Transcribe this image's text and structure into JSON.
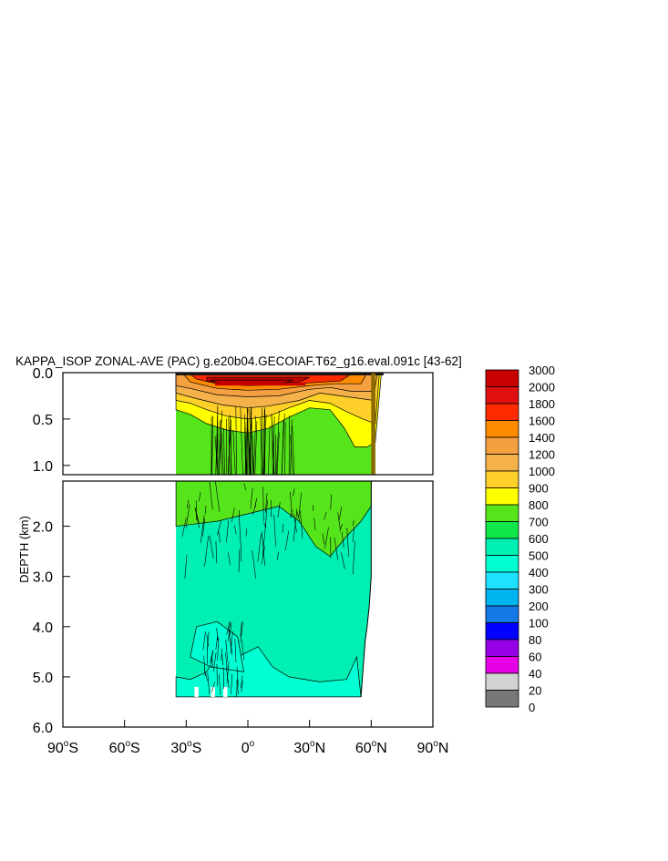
{
  "chart_data": {
    "type": "heatmap",
    "title": "KAPPA_ISOP ZONAL-AVE (PAC) g.e20b04.GECOIAF.T62_g16.eval.091c [43-62]",
    "ylabel": "DEPTH (km)",
    "xlabel": "",
    "x_ticks": [
      {
        "value": -90,
        "label": "90°S",
        "num": "90",
        "deg": "o",
        "hemi": "S"
      },
      {
        "value": -60,
        "label": "60°S",
        "num": "60",
        "deg": "o",
        "hemi": "S"
      },
      {
        "value": -30,
        "label": "30°S",
        "num": "30",
        "deg": "o",
        "hemi": "S"
      },
      {
        "value": 0,
        "label": "0°",
        "num": "0",
        "deg": "o",
        "hemi": ""
      },
      {
        "value": 30,
        "label": "30°N",
        "num": "30",
        "deg": "o",
        "hemi": "N"
      },
      {
        "value": 60,
        "label": "60°N",
        "num": "60",
        "deg": "o",
        "hemi": "N"
      },
      {
        "value": 90,
        "label": "90°N",
        "num": "90",
        "deg": "o",
        "hemi": "N"
      }
    ],
    "xlim": [
      -90,
      90
    ],
    "upper_panel": {
      "ylim": [
        0.0,
        1.1
      ],
      "y_ticks": [
        {
          "value": 0.0,
          "label": "0.0"
        },
        {
          "value": 0.5,
          "label": "0.5"
        },
        {
          "value": 1.0,
          "label": "1.0"
        }
      ]
    },
    "lower_panel": {
      "ylim": [
        1.1,
        6.0
      ],
      "y_ticks": [
        {
          "value": 2.0,
          "label": "2.0"
        },
        {
          "value": 3.0,
          "label": "3.0"
        },
        {
          "value": 4.0,
          "label": "4.0"
        },
        {
          "value": 5.0,
          "label": "5.0"
        },
        {
          "value": 6.0,
          "label": "6.0"
        }
      ]
    },
    "colorbar": {
      "labels": [
        "3000",
        "2000",
        "1800",
        "1600",
        "1400",
        "1200",
        "1000",
        "900",
        "800",
        "700",
        "600",
        "500",
        "400",
        "300",
        "200",
        "100",
        "80",
        "60",
        "40",
        "20",
        "0"
      ],
      "colors": [
        "#c80000",
        "#e01010",
        "#ff2a00",
        "#ff8c00",
        "#f5a040",
        "#f5b24a",
        "#ffd02a",
        "#ffff00",
        "#55e51a",
        "#10e84a",
        "#00f0b4",
        "#00ffd2",
        "#1ee1ff",
        "#00b4f0",
        "#1478e6",
        "#0000ff",
        "#9600e6",
        "#e600e6",
        "#d2d2d2",
        "#787878"
      ]
    },
    "field": {
      "lon_range": [
        -35,
        66
      ],
      "max_depth_km": 5.4,
      "surface_max_value": 3000,
      "upper_layer_value": 700,
      "deep_value": 500,
      "bottom_value": 400
    }
  }
}
